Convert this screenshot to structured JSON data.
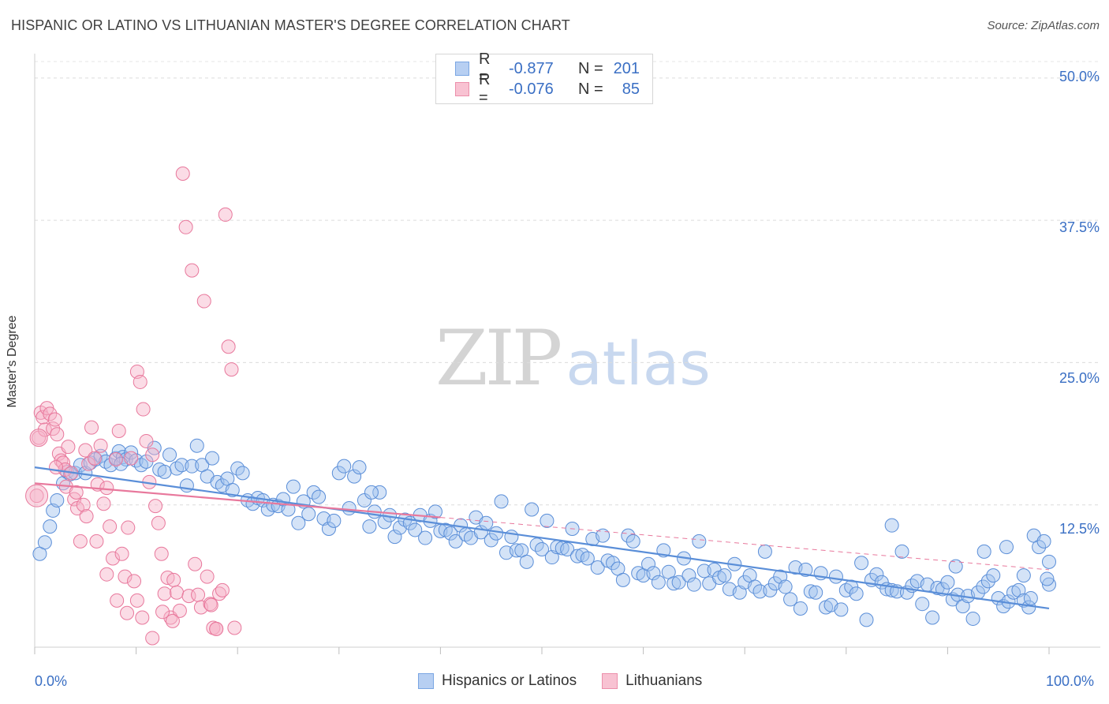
{
  "title": "HISPANIC OR LATINO VS LITHUANIAN MASTER'S DEGREE CORRELATION CHART",
  "source": "Source: ZipAtlas.com",
  "watermark": {
    "zip": "ZIP",
    "atlas": "atlas"
  },
  "legend": {
    "r_label": "R =",
    "n_label": "N =",
    "rows": [
      {
        "r": "-0.877",
        "n": "201",
        "color": "#7aa6e3",
        "fill": "#b7cff2"
      },
      {
        "r": "-0.076",
        "n": "85",
        "color": "#ec8fab",
        "fill": "#f8c2d2"
      }
    ]
  },
  "bottom_legend": [
    {
      "label": "Hispanics or Latinos",
      "color": "#7aa6e3",
      "fill": "#b7cff2"
    },
    {
      "label": "Lithuanians",
      "color": "#ec8fab",
      "fill": "#f8c2d2"
    }
  ],
  "chart_data": {
    "type": "scatter",
    "title": "HISPANIC OR LATINO VS LITHUANIAN MASTER'S DEGREE CORRELATION CHART",
    "xlabel": "",
    "ylabel": "Master's Degree",
    "xlim": [
      0,
      100
    ],
    "ylim": [
      0,
      52
    ],
    "x_tick_labels": [
      "0.0%",
      "100.0%"
    ],
    "y_ticks": [
      12.5,
      25.0,
      37.5,
      50.0
    ],
    "y_tick_labels": [
      "12.5%",
      "25.0%",
      "37.5%",
      "50.0%"
    ],
    "grid": "horizontal dashed",
    "series": [
      {
        "name": "Hispanics or Latinos",
        "color": "#5a8ed8",
        "fill": "rgba(160,192,238,0.45)",
        "trend": {
          "x": [
            0,
            100
          ],
          "y": [
            15.8,
            3.4
          ],
          "style": "solid"
        },
        "points": [
          [
            0.5,
            8.2
          ],
          [
            1.0,
            9.2
          ],
          [
            1.5,
            10.6
          ],
          [
            1.8,
            12.0
          ],
          [
            2.2,
            12.9
          ],
          [
            2.8,
            14.4
          ],
          [
            3.2,
            15.4
          ],
          [
            3.5,
            15.2
          ],
          [
            4.0,
            15.3
          ],
          [
            4.5,
            16.0
          ],
          [
            5.0,
            15.3
          ],
          [
            5.5,
            16.2
          ],
          [
            6.0,
            16.5
          ],
          [
            6.5,
            16.8
          ],
          [
            7.0,
            16.3
          ],
          [
            7.5,
            16.0
          ],
          [
            8.0,
            16.6
          ],
          [
            8.3,
            17.2
          ],
          [
            8.7,
            16.7
          ],
          [
            9.0,
            16.5
          ],
          [
            9.5,
            17.1
          ],
          [
            10.0,
            16.4
          ],
          [
            10.5,
            16.0
          ],
          [
            11.0,
            16.3
          ],
          [
            11.8,
            17.5
          ],
          [
            12.3,
            15.6
          ],
          [
            12.8,
            15.4
          ],
          [
            13.3,
            16.9
          ],
          [
            14.0,
            15.7
          ],
          [
            14.5,
            16.0
          ],
          [
            15.0,
            14.2
          ],
          [
            15.5,
            15.9
          ],
          [
            16.0,
            17.7
          ],
          [
            16.5,
            16.0
          ],
          [
            17.0,
            15.0
          ],
          [
            17.5,
            16.6
          ],
          [
            18.0,
            14.5
          ],
          [
            18.5,
            14.2
          ],
          [
            19.0,
            14.8
          ],
          [
            19.5,
            13.8
          ],
          [
            20.0,
            15.7
          ],
          [
            20.5,
            15.3
          ],
          [
            21.0,
            12.9
          ],
          [
            21.5,
            12.6
          ],
          [
            22.0,
            13.1
          ],
          [
            22.5,
            12.9
          ],
          [
            23.0,
            12.1
          ],
          [
            23.5,
            12.5
          ],
          [
            24.0,
            12.4
          ],
          [
            24.5,
            13.0
          ],
          [
            25.0,
            12.1
          ],
          [
            25.5,
            14.1
          ],
          [
            26.0,
            10.9
          ],
          [
            26.5,
            12.8
          ],
          [
            27.0,
            11.7
          ],
          [
            27.5,
            13.6
          ],
          [
            28.0,
            13.2
          ],
          [
            28.5,
            11.3
          ],
          [
            29.0,
            10.4
          ],
          [
            29.5,
            11.1
          ],
          [
            30.0,
            15.3
          ],
          [
            30.5,
            15.9
          ],
          [
            31.0,
            12.2
          ],
          [
            31.5,
            15.0
          ],
          [
            32.0,
            15.8
          ],
          [
            32.5,
            12.9
          ],
          [
            33.0,
            10.6
          ],
          [
            33.5,
            11.9
          ],
          [
            34.0,
            13.6
          ],
          [
            34.5,
            11.0
          ],
          [
            35.0,
            11.6
          ],
          [
            35.5,
            9.7
          ],
          [
            36.0,
            10.5
          ],
          [
            36.5,
            11.2
          ],
          [
            37.0,
            10.9
          ],
          [
            37.5,
            10.3
          ],
          [
            38.0,
            11.6
          ],
          [
            38.5,
            9.6
          ],
          [
            39.0,
            11.1
          ],
          [
            39.5,
            11.9
          ],
          [
            40.0,
            10.2
          ],
          [
            40.5,
            10.3
          ],
          [
            41.0,
            10.0
          ],
          [
            41.5,
            9.3
          ],
          [
            42.0,
            10.7
          ],
          [
            42.5,
            9.9
          ],
          [
            43.0,
            9.6
          ],
          [
            43.5,
            11.4
          ],
          [
            44.0,
            10.1
          ],
          [
            44.5,
            10.9
          ],
          [
            45.0,
            9.4
          ],
          [
            45.5,
            10.0
          ],
          [
            46.0,
            12.8
          ],
          [
            46.5,
            8.3
          ],
          [
            47.0,
            9.7
          ],
          [
            47.5,
            8.5
          ],
          [
            48.0,
            8.5
          ],
          [
            48.5,
            7.5
          ],
          [
            49.0,
            12.1
          ],
          [
            49.5,
            9.0
          ],
          [
            50.0,
            8.6
          ],
          [
            50.5,
            11.1
          ],
          [
            51.0,
            7.9
          ],
          [
            51.5,
            8.8
          ],
          [
            52.0,
            8.7
          ],
          [
            52.5,
            8.6
          ],
          [
            53.0,
            10.4
          ],
          [
            53.5,
            8.0
          ],
          [
            54.0,
            8.1
          ],
          [
            54.5,
            7.8
          ],
          [
            55.0,
            9.5
          ],
          [
            55.5,
            7.0
          ],
          [
            56.0,
            9.8
          ],
          [
            56.5,
            7.6
          ],
          [
            57.0,
            7.4
          ],
          [
            57.5,
            6.9
          ],
          [
            58.0,
            5.9
          ],
          [
            58.5,
            9.8
          ],
          [
            59.0,
            9.3
          ],
          [
            59.5,
            6.5
          ],
          [
            60.0,
            6.3
          ],
          [
            60.5,
            7.3
          ],
          [
            61.0,
            6.5
          ],
          [
            61.5,
            5.7
          ],
          [
            62.0,
            8.5
          ],
          [
            62.5,
            6.6
          ],
          [
            63.0,
            5.6
          ],
          [
            63.5,
            5.7
          ],
          [
            64.0,
            7.8
          ],
          [
            64.5,
            6.3
          ],
          [
            65.0,
            5.5
          ],
          [
            65.5,
            9.3
          ],
          [
            66.0,
            6.7
          ],
          [
            66.5,
            5.6
          ],
          [
            67.0,
            6.8
          ],
          [
            67.5,
            6.1
          ],
          [
            68.0,
            6.3
          ],
          [
            68.5,
            5.1
          ],
          [
            69.0,
            7.3
          ],
          [
            69.5,
            4.8
          ],
          [
            70.0,
            5.7
          ],
          [
            70.5,
            6.3
          ],
          [
            71.0,
            5.3
          ],
          [
            71.5,
            4.9
          ],
          [
            72.0,
            8.4
          ],
          [
            72.5,
            5.0
          ],
          [
            73.0,
            5.6
          ],
          [
            73.5,
            6.2
          ],
          [
            74.0,
            5.3
          ],
          [
            74.5,
            4.2
          ],
          [
            75.0,
            7.0
          ],
          [
            75.5,
            3.4
          ],
          [
            76.0,
            6.8
          ],
          [
            76.5,
            4.9
          ],
          [
            77.0,
            4.8
          ],
          [
            77.5,
            6.5
          ],
          [
            78.0,
            3.5
          ],
          [
            78.5,
            3.7
          ],
          [
            79.0,
            6.2
          ],
          [
            79.5,
            3.3
          ],
          [
            80.0,
            5.0
          ],
          [
            80.5,
            5.3
          ],
          [
            81.0,
            4.7
          ],
          [
            81.5,
            7.4
          ],
          [
            82.0,
            2.4
          ],
          [
            82.5,
            5.9
          ],
          [
            83.0,
            6.4
          ],
          [
            83.5,
            5.7
          ],
          [
            84.0,
            5.1
          ],
          [
            84.5,
            5.0
          ],
          [
            85.0,
            4.9
          ],
          [
            85.5,
            8.4
          ],
          [
            86.0,
            4.8
          ],
          [
            86.5,
            5.4
          ],
          [
            87.0,
            5.8
          ],
          [
            87.5,
            3.8
          ],
          [
            88.0,
            5.5
          ],
          [
            88.5,
            2.6
          ],
          [
            89.0,
            5.2
          ],
          [
            89.5,
            5.1
          ],
          [
            90.0,
            5.7
          ],
          [
            90.5,
            4.2
          ],
          [
            91.0,
            4.6
          ],
          [
            91.5,
            3.6
          ],
          [
            92.0,
            4.5
          ],
          [
            92.5,
            2.5
          ],
          [
            93.0,
            4.8
          ],
          [
            93.5,
            5.3
          ],
          [
            94.0,
            5.8
          ],
          [
            94.5,
            6.3
          ],
          [
            95.0,
            4.3
          ],
          [
            95.5,
            3.6
          ],
          [
            96.0,
            4.0
          ],
          [
            96.5,
            4.8
          ],
          [
            97.0,
            5.0
          ],
          [
            97.5,
            4.1
          ],
          [
            98.0,
            3.5
          ],
          [
            98.5,
            9.8
          ],
          [
            99.0,
            8.8
          ],
          [
            99.5,
            9.3
          ],
          [
            100.0,
            5.5
          ]
        ],
        "extra_points": [
          [
            8.5,
            16.1
          ],
          [
            33.2,
            13.6
          ],
          [
            84.5,
            10.7
          ],
          [
            95.8,
            8.8
          ],
          [
            98.2,
            4.3
          ],
          [
            100.0,
            7.5
          ],
          [
            99.8,
            6.0
          ],
          [
            97.5,
            6.3
          ],
          [
            90.8,
            7.1
          ],
          [
            93.6,
            8.4
          ]
        ]
      },
      {
        "name": "Lithuanians",
        "color": "#e8789c",
        "fill": "rgba(246,178,200,0.45)",
        "trend": {
          "x": [
            0,
            40
          ],
          "y": [
            14.4,
            11.4
          ],
          "style": "solid"
        },
        "trend_ext": {
          "x": [
            40,
            100
          ],
          "y": [
            11.4,
            6.8
          ],
          "style": "dashed"
        },
        "points": [
          [
            0.2,
            13.3
          ],
          [
            0.4,
            18.4
          ],
          [
            0.6,
            20.6
          ],
          [
            0.8,
            20.2
          ],
          [
            1.0,
            19.1
          ],
          [
            1.2,
            21.0
          ],
          [
            1.5,
            20.5
          ],
          [
            1.8,
            19.2
          ],
          [
            2.0,
            20.0
          ],
          [
            2.2,
            18.7
          ],
          [
            2.4,
            17.0
          ],
          [
            2.6,
            16.4
          ],
          [
            2.8,
            16.2
          ],
          [
            3.0,
            15.6
          ],
          [
            3.3,
            17.6
          ],
          [
            3.6,
            15.3
          ],
          [
            3.9,
            13.0
          ],
          [
            4.2,
            12.2
          ],
          [
            4.5,
            9.3
          ],
          [
            4.8,
            12.5
          ],
          [
            5.0,
            17.3
          ],
          [
            5.3,
            16.1
          ],
          [
            5.6,
            19.3
          ],
          [
            5.9,
            16.6
          ],
          [
            6.2,
            14.3
          ],
          [
            6.5,
            17.7
          ],
          [
            6.8,
            12.6
          ],
          [
            7.1,
            14.0
          ],
          [
            7.4,
            10.6
          ],
          [
            7.7,
            7.8
          ],
          [
            8.0,
            16.5
          ],
          [
            8.3,
            19.0
          ],
          [
            8.6,
            8.2
          ],
          [
            8.9,
            6.2
          ],
          [
            9.2,
            10.5
          ],
          [
            9.5,
            16.6
          ],
          [
            9.8,
            5.8
          ],
          [
            10.1,
            24.2
          ],
          [
            10.4,
            23.3
          ],
          [
            10.7,
            20.9
          ],
          [
            11.0,
            18.1
          ],
          [
            11.3,
            14.5
          ],
          [
            11.6,
            16.9
          ],
          [
            11.9,
            12.4
          ],
          [
            12.2,
            10.9
          ],
          [
            12.5,
            8.2
          ],
          [
            12.8,
            4.7
          ],
          [
            13.1,
            6.1
          ],
          [
            13.4,
            2.6
          ],
          [
            13.7,
            5.9
          ],
          [
            14.0,
            4.8
          ],
          [
            14.3,
            3.2
          ],
          [
            14.6,
            41.6
          ],
          [
            14.9,
            36.9
          ],
          [
            15.2,
            4.5
          ],
          [
            15.5,
            33.1
          ],
          [
            15.8,
            7.3
          ],
          [
            16.1,
            4.6
          ],
          [
            16.4,
            3.5
          ],
          [
            16.7,
            30.4
          ],
          [
            17.0,
            6.2
          ],
          [
            17.3,
            3.8
          ],
          [
            17.6,
            1.7
          ],
          [
            17.9,
            1.6
          ],
          [
            18.2,
            4.7
          ],
          [
            18.5,
            5.0
          ],
          [
            18.8,
            38.0
          ],
          [
            19.1,
            26.4
          ],
          [
            19.4,
            24.4
          ],
          [
            19.7,
            1.7
          ],
          [
            2.1,
            15.8
          ],
          [
            3.1,
            14.1
          ],
          [
            4.1,
            13.6
          ],
          [
            5.1,
            11.5
          ],
          [
            6.1,
            9.3
          ],
          [
            7.1,
            6.4
          ],
          [
            8.1,
            4.1
          ],
          [
            9.1,
            3.0
          ],
          [
            10.1,
            4.1
          ],
          [
            10.6,
            2.6
          ],
          [
            11.6,
            0.8
          ],
          [
            12.6,
            3.1
          ],
          [
            13.6,
            2.3
          ],
          [
            17.4,
            3.7
          ],
          [
            17.9,
            1.6
          ]
        ]
      }
    ]
  }
}
